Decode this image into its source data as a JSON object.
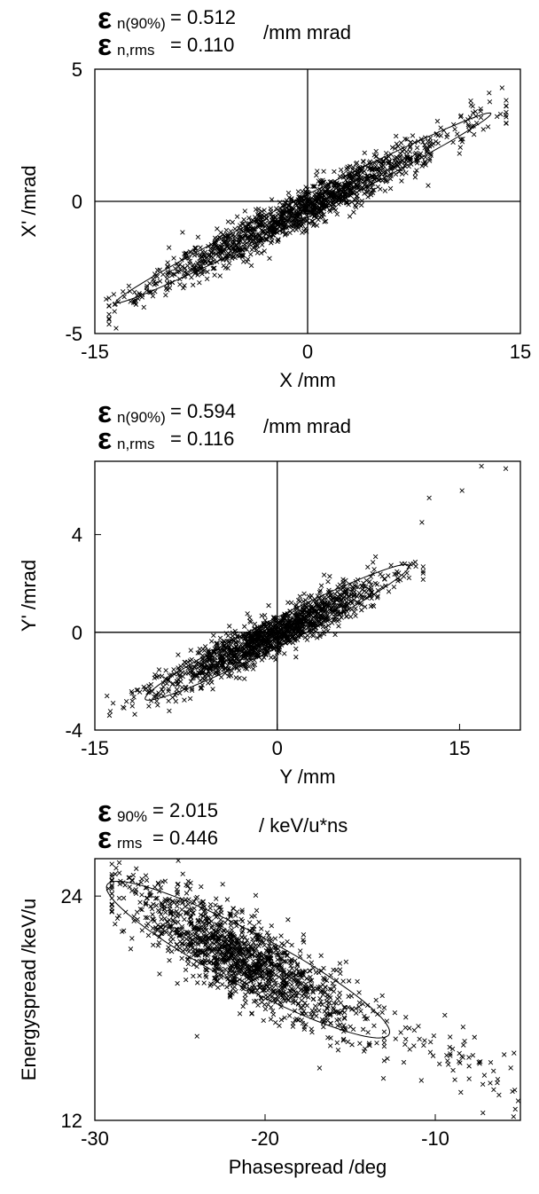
{
  "chart_data": [
    {
      "type": "scatter",
      "header": {
        "sym": "ε",
        "sub1": "n(90%)",
        "val1": "= 0.512",
        "sub2": "n,rms",
        "val2": "= 0.110",
        "unit": "/mm mrad"
      },
      "xlabel": "X /mm",
      "ylabel": "X' /mrad",
      "xlim": [
        -15,
        15
      ],
      "ylim": [
        -5,
        5
      ],
      "xticks": [
        "-15",
        "0",
        "15"
      ],
      "yticks": [
        "-5",
        "0",
        "5"
      ],
      "xtick_values": [
        -15,
        0,
        15
      ],
      "ytick_values": [
        -5,
        0,
        5
      ],
      "axes_lines_at_zero": true,
      "ellipse": {
        "center": [
          -0.3,
          -0.25
        ],
        "semi_major": 13.7,
        "semi_minor": 0.42,
        "slope": 0.27
      },
      "cloud": {
        "n": 1400,
        "seed": 11,
        "center": [
          -0.5,
          -0.35
        ],
        "sx": 5.2,
        "slope": 0.27,
        "sy": 0.38,
        "xrange": [
          -14,
          14
        ]
      },
      "points": [
        [
          -14.2,
          -3.7
        ],
        [
          -13.5,
          -4.8
        ],
        [
          -12.6,
          -3.2
        ],
        [
          -12.1,
          -3.9
        ],
        [
          8.5,
          0.6
        ],
        [
          11.5,
          3.8
        ],
        [
          12.2,
          3.5
        ],
        [
          13.6,
          3.3
        ],
        [
          14.0,
          3.6
        ],
        [
          12.8,
          4.1
        ]
      ]
    },
    {
      "type": "scatter",
      "header": {
        "sym": "ε",
        "sub1": "n(90%)",
        "val1": "= 0.594",
        "sub2": "n,rms",
        "val2": "= 0.116",
        "unit": "/mm mrad"
      },
      "xlabel": "Y /mm",
      "ylabel": "Y' /mrad",
      "xlim": [
        -15,
        20
      ],
      "ylim": [
        -4,
        7
      ],
      "xticks": [
        "-15",
        "0",
        "15"
      ],
      "yticks": [
        "-4",
        "0",
        "4"
      ],
      "xtick_values": [
        -15,
        0,
        15
      ],
      "ytick_values": [
        -4,
        0,
        4
      ],
      "axes_lines_at_zero": true,
      "ellipse": {
        "center": [
          0,
          0.0
        ],
        "semi_major": 11.2,
        "semi_minor": 0.6,
        "slope": 0.25
      },
      "cloud": {
        "n": 1400,
        "seed": 23,
        "center": [
          -0.5,
          -0.15
        ],
        "sx": 4.5,
        "slope": 0.23,
        "sy": 0.42,
        "xrange": [
          -14,
          12
        ]
      },
      "points": [
        [
          -13.8,
          -3.4
        ],
        [
          -13.5,
          -2.9
        ],
        [
          -12.6,
          -3.1
        ],
        [
          11.9,
          4.5
        ],
        [
          12.5,
          5.5
        ],
        [
          15.2,
          5.8
        ],
        [
          16.8,
          6.8
        ],
        [
          18.8,
          6.7
        ],
        [
          12.0,
          2.5
        ],
        [
          11.4,
          2.7
        ]
      ]
    },
    {
      "type": "scatter",
      "header": {
        "sym": "ε",
        "sub1": "90%",
        "val1": "= 2.015",
        "sub2": "rms",
        "val2": "= 0.446",
        "unit": "/ keV/u*ns"
      },
      "xlabel": "Phasespread /deg",
      "ylabel": "Energyspread /keV/u",
      "xlim": [
        -30,
        -5
      ],
      "ylim": [
        12,
        26
      ],
      "xticks": [
        "-30",
        "-20",
        "-10"
      ],
      "yticks": [
        "12",
        "24"
      ],
      "xtick_values": [
        -30,
        -20,
        -10
      ],
      "ytick_values": [
        12,
        24
      ],
      "axes_lines_at_zero": false,
      "ellipse": {
        "center": [
          -21.0,
          20.6
        ],
        "semi_major": 9.2,
        "semi_minor": 1.45,
        "slope": -0.48
      },
      "cloud": {
        "n": 1400,
        "seed": 37,
        "center": [
          -21.5,
          20.8
        ],
        "sx": 3.3,
        "slope": -0.48,
        "sy": 1.1,
        "xrange": [
          -29,
          -13
        ]
      },
      "tail": {
        "n": 70,
        "seed": 41,
        "x0": -14,
        "x1": -5,
        "y0": 17.0,
        "y1": 14.2,
        "sy": 0.8
      },
      "points": [
        [
          -29.2,
          24.4
        ],
        [
          -28.4,
          22.1
        ],
        [
          -25.1,
          25.9
        ],
        [
          -7.2,
          12.4
        ],
        [
          -5.4,
          12.2
        ],
        [
          -5.3,
          12.6
        ],
        [
          -24.0,
          16.5
        ],
        [
          -16.8,
          14.8
        ],
        [
          -11.5,
          15.8
        ],
        [
          -8.5,
          13.5
        ]
      ]
    }
  ]
}
